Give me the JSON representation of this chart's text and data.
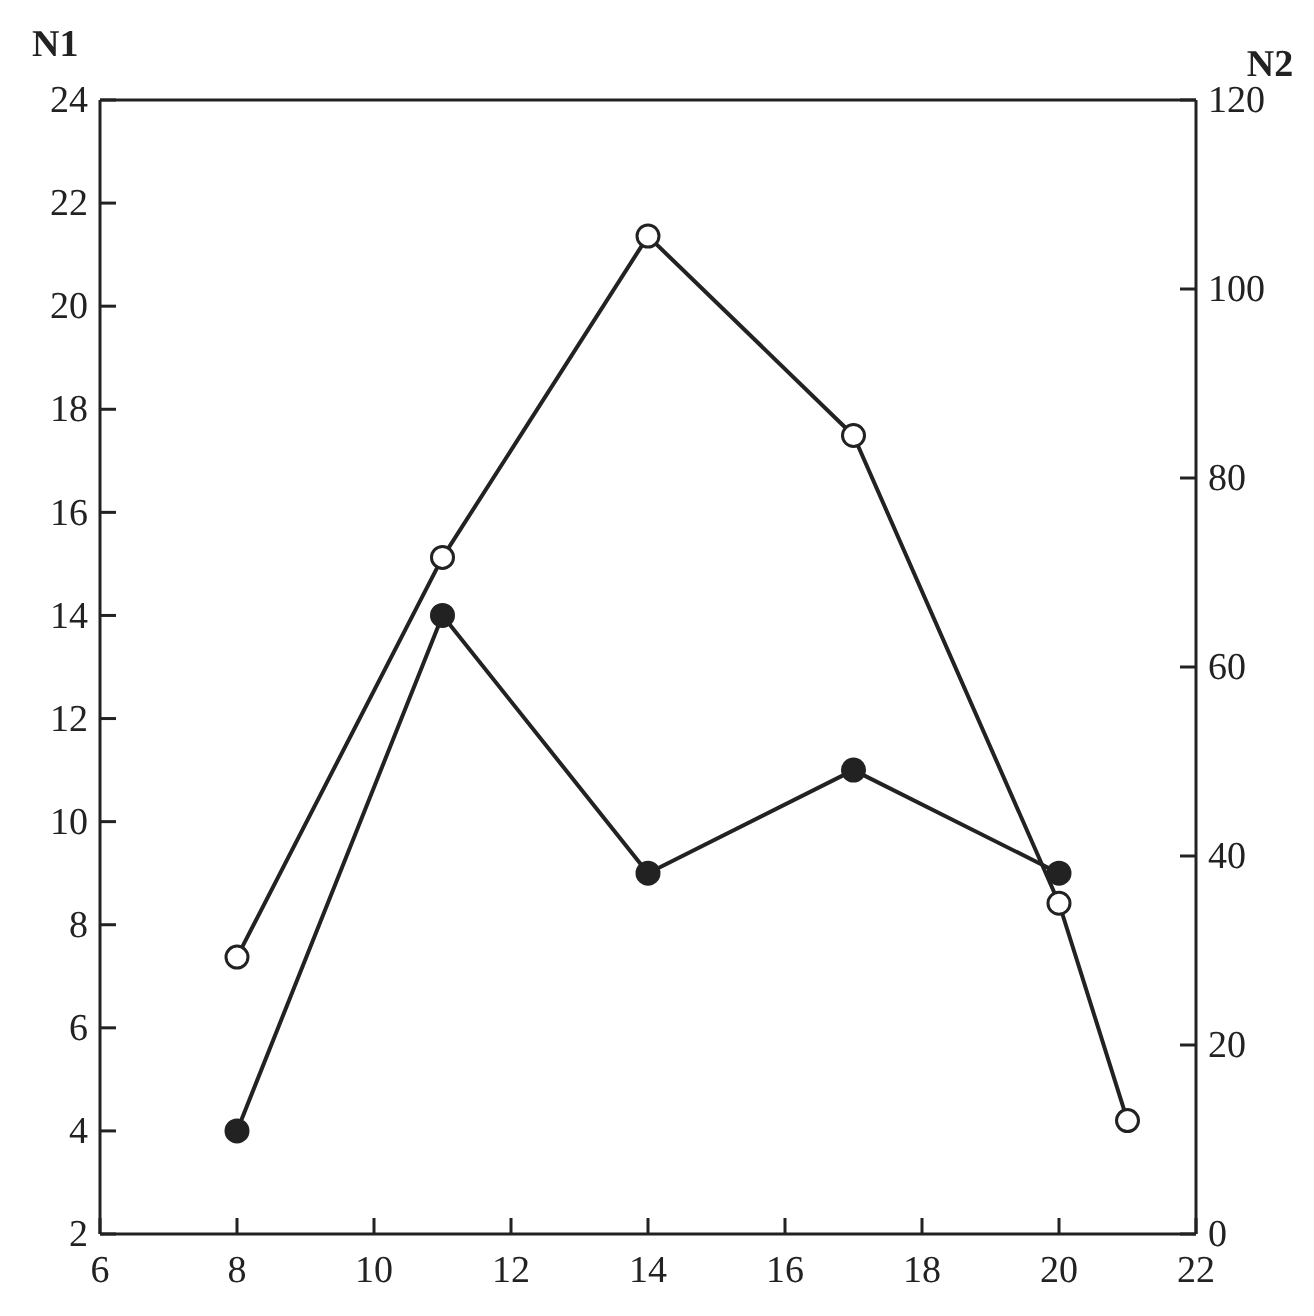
{
  "chart_data": {
    "type": "line",
    "ylabel": "N1",
    "y2label": "N2",
    "marker": "circle",
    "line_style": "solid",
    "xlim": [
      6,
      22
    ],
    "xticks": [
      6,
      8,
      10,
      12,
      14,
      16,
      18,
      20,
      22
    ],
    "ylim": [
      2,
      24
    ],
    "yticks": [
      2,
      4,
      6,
      8,
      10,
      12,
      14,
      16,
      18,
      20,
      22,
      24
    ],
    "y2lim": [
      0,
      120
    ],
    "y2ticks": [
      0,
      20,
      40,
      60,
      80,
      100,
      120
    ],
    "series": [
      {
        "color": "#222222",
        "x": [
          8,
          11,
          14,
          17,
          20
        ],
        "values": [
          4,
          14,
          9,
          11,
          9
        ]
      },
      {
        "color": "#ffffff",
        "axis": "y2",
        "x": [
          8,
          11,
          14,
          17,
          20,
          21
        ],
        "values": [
          29.3,
          71.6,
          105.6,
          84.5,
          35,
          12
        ]
      }
    ]
  }
}
